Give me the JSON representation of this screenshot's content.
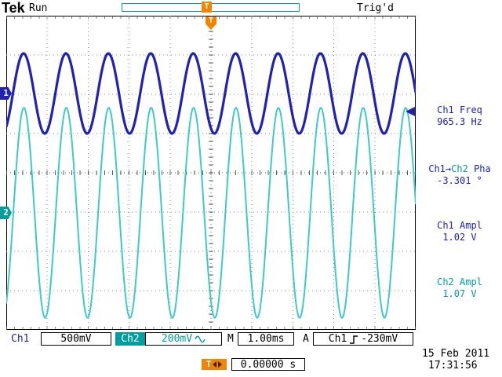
{
  "colors": {
    "ch1": "#2121b2",
    "ch2": "#009e9e",
    "ch2_wave": "#3fc9c9",
    "orange": "#f28500",
    "grid": "#8c8c8c",
    "center_grid": "#5a5a5a"
  },
  "topbar": {
    "brand": "Tek",
    "acq_state": "Run",
    "trigger_status": "Trig'd",
    "trigger_marker": "T"
  },
  "graticule_marker": "T",
  "channel_markers": {
    "ch1": "1",
    "ch2": "2"
  },
  "measurements": {
    "freq": {
      "label": "Ch1 Freq",
      "value": "965.3 Hz"
    },
    "phase": {
      "label_src": "Ch1",
      "label_arrow": "→",
      "label_dst": "Ch2",
      "label_meas": " Pha",
      "value": "-3.301 °"
    },
    "ampl1": {
      "label": "Ch1 Ampl",
      "value": "1.02 V"
    },
    "ampl2": {
      "label": "Ch2 Ampl",
      "value": "1.07 V"
    }
  },
  "statusbar": {
    "ch1_label": "Ch1",
    "ch1_scale": "500mV",
    "ch2_label": "Ch2",
    "ch2_scale": "200mV",
    "timebase_prefix": "M",
    "timebase": "1.00ms",
    "trigger_prefix": "A",
    "trigger_source": "Ch1",
    "trigger_level": "-230mV",
    "delay_marker": "T",
    "delay_value": "0.00000 s",
    "date": "15 Feb 2011",
    "time": "17:31:56"
  },
  "chart_data": {
    "type": "line",
    "title": "Oscilloscope sine waveforms",
    "timebase_s_per_div": 0.001,
    "divisions": {
      "horizontal": 10,
      "vertical": 8
    },
    "trigger": {
      "source": "Ch1",
      "level_v": -0.23,
      "position_s": 0.0
    },
    "series": [
      {
        "name": "Ch1",
        "color": "#2121b2",
        "freq_hz": 965.3,
        "ampl_vpp_v": 1.02,
        "volts_per_div": 0.5,
        "vertical_center_div": 2.02,
        "phase_deg_rel_ch1": 0
      },
      {
        "name": "Ch2",
        "color": "#3fc9c9",
        "freq_hz": 965.3,
        "ampl_vpp_v": 1.07,
        "volts_per_div": 0.2,
        "vertical_center_div": -1.02,
        "phase_deg_rel_ch1": -3.301
      }
    ]
  }
}
